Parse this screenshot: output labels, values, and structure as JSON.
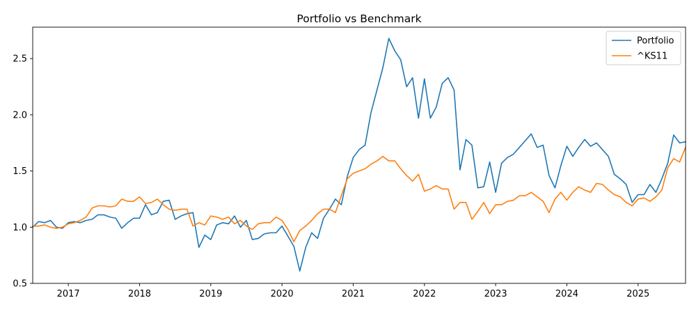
{
  "chart_data": {
    "type": "line",
    "title": "Portfolio vs Benchmark",
    "xlabel": "",
    "ylabel": "",
    "x_start": "2016-07",
    "x_end": "2025-09",
    "x_ticks": [
      "2017",
      "2018",
      "2019",
      "2020",
      "2021",
      "2022",
      "2023",
      "2024",
      "2025"
    ],
    "ylim": [
      0.5,
      2.78
    ],
    "y_ticks": [
      0.5,
      1.0,
      1.5,
      2.0,
      2.5
    ],
    "grid": false,
    "legend_position": "top-right",
    "series": [
      {
        "name": "Portfolio",
        "color": "#1f77b4",
        "values": [
          1.0,
          1.05,
          1.04,
          1.06,
          1.0,
          0.99,
          1.04,
          1.05,
          1.04,
          1.06,
          1.07,
          1.11,
          1.11,
          1.09,
          1.08,
          0.99,
          1.04,
          1.08,
          1.08,
          1.2,
          1.11,
          1.13,
          1.23,
          1.24,
          1.07,
          1.1,
          1.12,
          1.13,
          0.82,
          0.93,
          0.89,
          1.02,
          1.04,
          1.03,
          1.1,
          1.0,
          1.06,
          0.89,
          0.9,
          0.94,
          0.95,
          0.95,
          1.01,
          0.92,
          0.83,
          0.61,
          0.82,
          0.95,
          0.9,
          1.08,
          1.16,
          1.25,
          1.2,
          1.45,
          1.62,
          1.69,
          1.73,
          2.02,
          2.22,
          2.42,
          2.68,
          2.57,
          2.49,
          2.25,
          2.33,
          1.97,
          2.32,
          1.97,
          2.07,
          2.28,
          2.33,
          2.22,
          1.51,
          1.78,
          1.73,
          1.35,
          1.36,
          1.58,
          1.31,
          1.57,
          1.62,
          1.65,
          1.71,
          1.77,
          1.83,
          1.71,
          1.73,
          1.46,
          1.35,
          1.55,
          1.72,
          1.63,
          1.71,
          1.78,
          1.72,
          1.75,
          1.69,
          1.63,
          1.47,
          1.43,
          1.38,
          1.22,
          1.29,
          1.29,
          1.38,
          1.31,
          1.43,
          1.57,
          1.82,
          1.75,
          1.76
        ]
      },
      {
        "name": "^KS11",
        "color": "#ff7f0e",
        "values": [
          1.01,
          1.01,
          1.02,
          1.0,
          0.99,
          1.0,
          1.03,
          1.04,
          1.06,
          1.09,
          1.17,
          1.19,
          1.19,
          1.18,
          1.19,
          1.25,
          1.23,
          1.23,
          1.27,
          1.21,
          1.22,
          1.25,
          1.2,
          1.16,
          1.15,
          1.16,
          1.16,
          1.01,
          1.04,
          1.02,
          1.1,
          1.09,
          1.07,
          1.09,
          1.03,
          1.06,
          1.01,
          0.98,
          1.03,
          1.04,
          1.04,
          1.09,
          1.06,
          0.98,
          0.87,
          0.97,
          1.01,
          1.06,
          1.12,
          1.16,
          1.16,
          1.13,
          1.28,
          1.43,
          1.48,
          1.5,
          1.52,
          1.56,
          1.59,
          1.63,
          1.59,
          1.59,
          1.52,
          1.46,
          1.41,
          1.47,
          1.32,
          1.34,
          1.37,
          1.34,
          1.34,
          1.16,
          1.22,
          1.22,
          1.07,
          1.14,
          1.22,
          1.12,
          1.2,
          1.2,
          1.23,
          1.24,
          1.28,
          1.28,
          1.31,
          1.27,
          1.23,
          1.13,
          1.25,
          1.31,
          1.24,
          1.31,
          1.36,
          1.33,
          1.31,
          1.39,
          1.38,
          1.33,
          1.29,
          1.27,
          1.22,
          1.19,
          1.25,
          1.26,
          1.23,
          1.27,
          1.33,
          1.53,
          1.61,
          1.58,
          1.71
        ]
      }
    ]
  }
}
